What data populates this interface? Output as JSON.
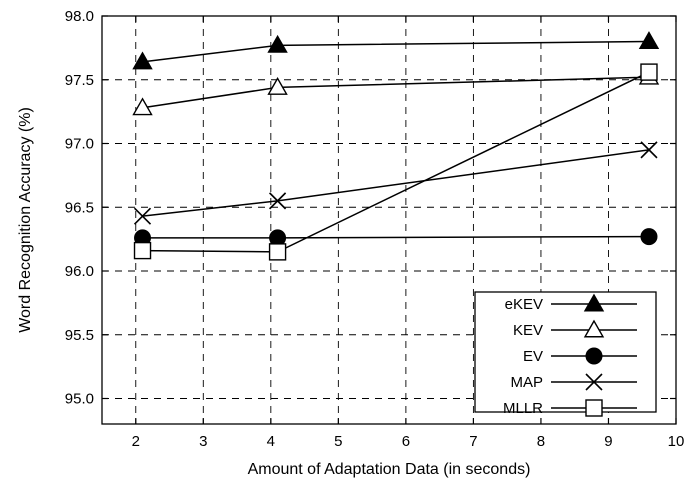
{
  "chart_data": {
    "type": "line",
    "xlabel": "Amount of Adaptation Data (in seconds)",
    "ylabel": "Word Recognition Accuracy (%)",
    "xlim": [
      1.5,
      10
    ],
    "ylim": [
      94.8,
      98.0
    ],
    "xticks": [
      2,
      3,
      4,
      5,
      6,
      7,
      8,
      9,
      10
    ],
    "yticks": [
      95.0,
      95.5,
      96.0,
      96.5,
      97.0,
      97.5,
      98.0
    ],
    "ytick_labels": [
      "95.0",
      "95.5",
      "96.0",
      "96.5",
      "97.0",
      "97.5",
      "98.0"
    ],
    "grid": true,
    "legend_position": "bottom-right",
    "series": [
      {
        "name": "eKEV",
        "marker": "filled-triangle",
        "x": [
          2.1,
          4.1,
          9.6
        ],
        "y": [
          97.64,
          97.77,
          97.8
        ]
      },
      {
        "name": "KEV",
        "marker": "open-triangle",
        "x": [
          2.1,
          4.1,
          9.6
        ],
        "y": [
          97.28,
          97.44,
          97.52
        ]
      },
      {
        "name": "EV",
        "marker": "filled-circle",
        "x": [
          2.1,
          4.1,
          9.6
        ],
        "y": [
          96.26,
          96.26,
          96.27
        ]
      },
      {
        "name": "MAP",
        "marker": "x-cross",
        "x": [
          2.1,
          4.1,
          9.6
        ],
        "y": [
          96.43,
          96.55,
          96.95
        ]
      },
      {
        "name": "MLLR",
        "marker": "open-square",
        "x": [
          2.1,
          4.1,
          9.6
        ],
        "y": [
          96.16,
          96.15,
          97.56
        ]
      }
    ]
  }
}
